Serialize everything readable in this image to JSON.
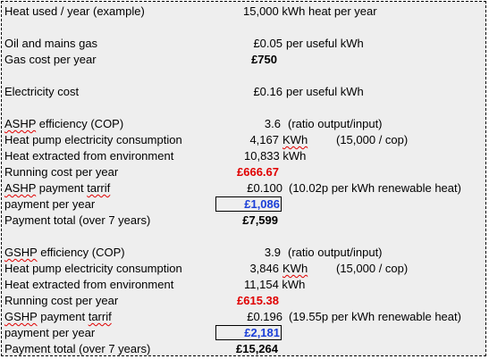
{
  "heat_used": {
    "label": "Heat used / year  (example)",
    "value": "15,000 kWh heat per year"
  },
  "gas": {
    "label": "Oil and mains gas",
    "value": "£0.05",
    "unit": "per useful kWh",
    "cost_label": "Gas cost per year",
    "cost_value": "£750"
  },
  "electricity": {
    "label": "Electricity cost",
    "value": "£0.16",
    "unit": "per useful kWh"
  },
  "ashp": {
    "efficiency_label_a": "ASHP",
    "efficiency_label_b": " efficiency (COP)",
    "efficiency_value": "3.6",
    "efficiency_note": "(ratio output/input)",
    "consumption_label": "Heat pump electricity consumption",
    "consumption_value": "4,167",
    "consumption_unit": "KWh",
    "consumption_note": "(15,000 / cop)",
    "extracted_label": "Heat extracted from environment",
    "extracted_value": "10,833 kWh",
    "running_label": "Running cost per year",
    "running_value": "£666.67",
    "tarrif_label_a": "ASHP",
    "tarrif_label_b": " payment ",
    "tarrif_label_c": "tarrif",
    "tarrif_value": "£0.100",
    "tarrif_note": "(10.02p per kWh renewable heat)",
    "payment_label": "payment per year",
    "payment_value": "£1,086",
    "total_label": "Payment total (over 7 years)",
    "total_value": "£7,599"
  },
  "gshp": {
    "efficiency_label_a": "GSHP",
    "efficiency_label_b": " efficiency (COP)",
    "efficiency_value": "3.9",
    "efficiency_note": "(ratio output/input)",
    "consumption_label": "Heat pump electricity consumption",
    "consumption_value": "3,846",
    "consumption_unit": "KWh",
    "consumption_note": "(15,000 / cop)",
    "extracted_label": "Heat extracted from environment",
    "extracted_value": "11,154 kWh",
    "running_label": "Running cost per year",
    "running_value": "£615.38",
    "tarrif_label_a": "GSHP",
    "tarrif_label_b": " payment ",
    "tarrif_label_c": "tarrif",
    "tarrif_value": "£0.196",
    "tarrif_note": "(19.55p per kWh renewable heat)",
    "payment_label": "payment per year",
    "payment_value": "£2,181",
    "total_label": "Payment total (over 7 years)",
    "total_value": "£15,264"
  }
}
